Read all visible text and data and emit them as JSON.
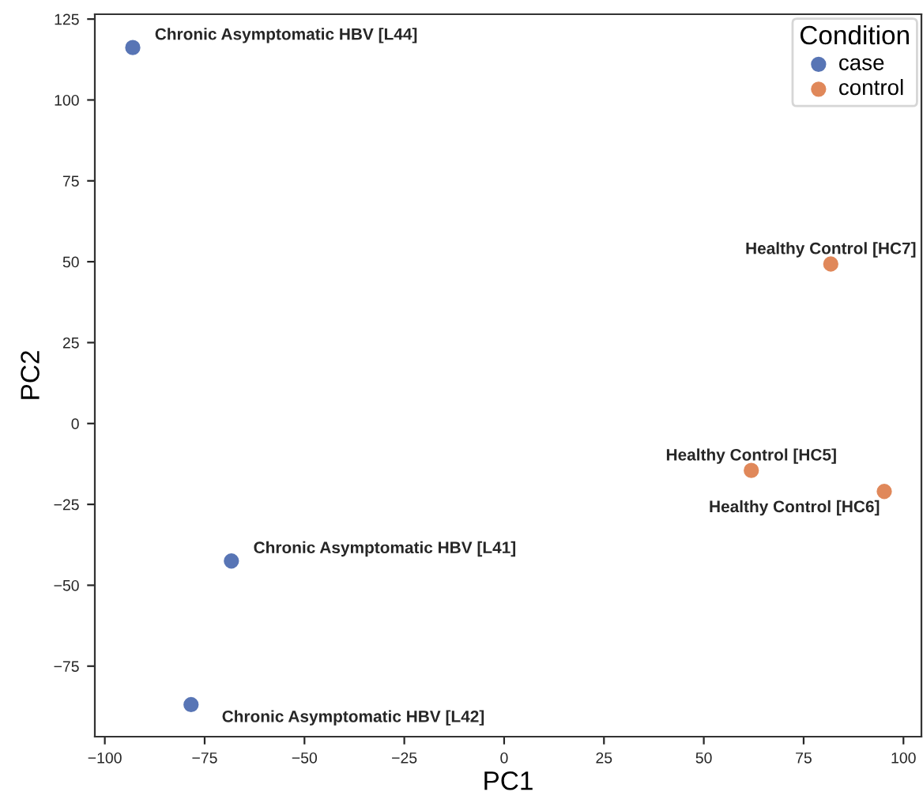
{
  "chart_data": {
    "type": "scatter",
    "xlabel": "PC1",
    "ylabel": "PC2",
    "legend_title": "Condition",
    "legend": "top right",
    "marker": "circle",
    "grid": false,
    "xlim": [
      -102.5,
      104.5
    ],
    "xticks": [
      -100,
      -75,
      -50,
      -25,
      0,
      25,
      50,
      75,
      100
    ],
    "ylim": [
      -96.8,
      126.5
    ],
    "yticks": [
      -75,
      -50,
      -25,
      0,
      25,
      50,
      75,
      100,
      125
    ],
    "series": [
      {
        "name": "case",
        "color": "#5875b5",
        "x": [
          -93.0,
          -68.3,
          -78.4
        ],
        "values": [
          116.2,
          -42.5,
          -86.9
        ]
      },
      {
        "name": "control",
        "color": "#e0885a",
        "x": [
          81.8,
          61.9,
          95.2
        ],
        "values": [
          49.3,
          -14.5,
          -21.0
        ]
      }
    ],
    "annotations": [
      {
        "text": "Chronic Asymptomatic HBV [L44]",
        "x": -93.0,
        "y": 116.2
      },
      {
        "text": "Chronic Asymptomatic HBV [L41]",
        "x": -68.3,
        "y": -42.5
      },
      {
        "text": "Chronic Asymptomatic HBV [L42]",
        "x": -78.4,
        "y": -86.9
      },
      {
        "text": "Healthy Control [HC7]",
        "x": 81.8,
        "y": 49.3
      },
      {
        "text": "Healthy Control [HC5]",
        "x": 61.9,
        "y": -14.5
      },
      {
        "text": "Healthy Control [HC6]",
        "x": 95.2,
        "y": -21.0
      }
    ]
  }
}
